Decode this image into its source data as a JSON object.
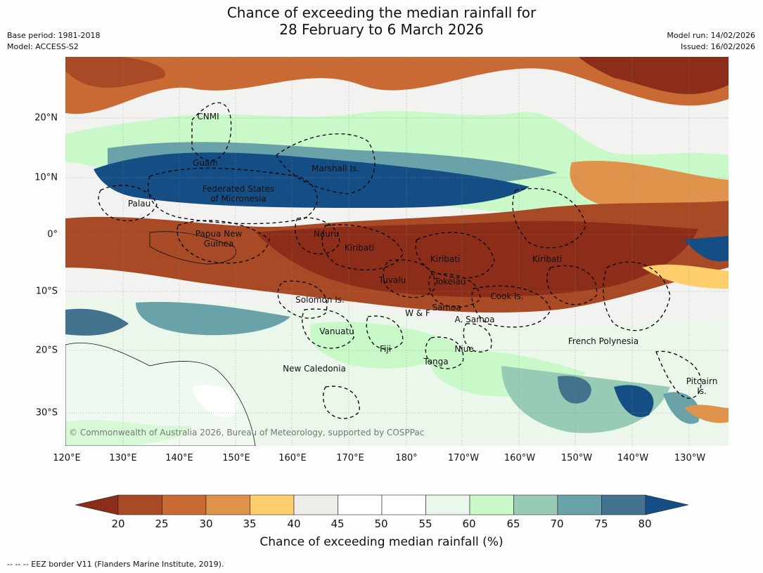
{
  "title_line1": "Chance of exceeding the median rainfall for",
  "title_line2": "28 February to 6 March 2026",
  "meta": {
    "base_period": "Base period: 1981-2018",
    "model": "Model: ACCESS-S2",
    "model_run": "Model run: 14/02/2026",
    "issued": "Issued: 16/02/2026"
  },
  "map": {
    "copyright": "© Commonwealth of Australia 2026, Bureau of Meteorology, supported by COSPPac",
    "lon_range": [
      120,
      237
    ],
    "lat_range": [
      -35,
      30
    ],
    "lat_ticks": [
      "20°N",
      "10°N",
      "0°",
      "10°S",
      "20°S",
      "30°S"
    ],
    "lon_ticks": [
      "120°E",
      "130°E",
      "140°E",
      "150°E",
      "160°E",
      "170°E",
      "180°",
      "170°W",
      "160°W",
      "150°W",
      "140°W",
      "130°W"
    ],
    "place_labels": [
      "CNMI",
      "Guam",
      "Marshall Is.",
      "Federated States\nof Micronesia",
      "Palau",
      "Papua New\nGuinea",
      "Nauru",
      "Kiribati",
      "Kiribati",
      "Kiribati",
      "Tuvalu",
      "Tokelau",
      "Cook Is.",
      "Solomon Is.",
      "W & F",
      "Samoa",
      "A. Samoa",
      "Vanuatu",
      "Fiji",
      "Niue",
      "Tonga",
      "New Caledonia",
      "French Polynesia",
      "Pitcairn\nIs."
    ]
  },
  "colorbar": {
    "label": "Chance of exceeding median rainfall (%)",
    "ticks": [
      "20",
      "25",
      "30",
      "35",
      "40",
      "45",
      "50",
      "55",
      "60",
      "65",
      "70",
      "75",
      "80"
    ],
    "colors": [
      "#8c2d1a",
      "#a84a25",
      "#c96a34",
      "#e0934a",
      "#fdce6b",
      "#efedea",
      "#ffffff",
      "#ffffff",
      "#eaf7ea",
      "#c9f9c8",
      "#98cbb5",
      "#6aa2aa",
      "#43728f",
      "#144e84"
    ]
  },
  "footer": "--  --  -- EEZ border V11 (Flanders Marine Institute, 2019)."
}
